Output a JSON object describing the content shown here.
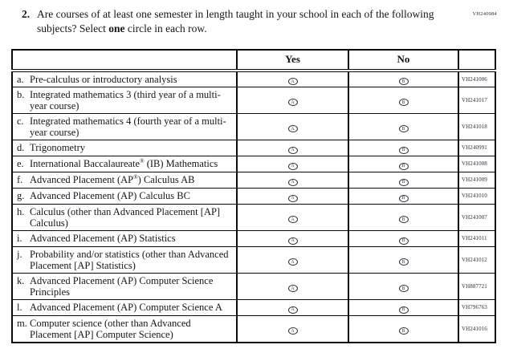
{
  "form_code": "VH240984",
  "question": {
    "number": "2.",
    "text_prefix": "Are courses of at least one semester in length taught in your school in each of the following subjects? Select ",
    "text_bold": "one",
    "text_suffix": " circle in each row."
  },
  "table": {
    "header": {
      "subject": "",
      "yes": "Yes",
      "no": "No",
      "code": ""
    },
    "yes_letter": "A",
    "no_letter": "B",
    "rows": [
      {
        "letter": "a.",
        "subject": "Pre-calculus or introductory analysis",
        "code": "VH241006"
      },
      {
        "letter": "b.",
        "subject": "Integrated mathematics 3 (third year of a multi-year course)",
        "code": "VH241017"
      },
      {
        "letter": "c.",
        "subject": "Integrated mathematics 4 (fourth year of a multi-year course)",
        "code": "VH241018"
      },
      {
        "letter": "d.",
        "subject": "Trigonometry",
        "code": "VH240991"
      },
      {
        "letter": "e.",
        "subject": "International Baccalaureate® (IB) Mathematics",
        "code": "VH241008"
      },
      {
        "letter": "f.",
        "subject": "Advanced Placement (AP®) Calculus AB",
        "code": "VH241009"
      },
      {
        "letter": "g.",
        "subject": "Advanced Placement (AP) Calculus BC",
        "code": "VH241010"
      },
      {
        "letter": "h.",
        "subject": "Calculus (other than Advanced Placement [AP] Calculus)",
        "code": "VH241007"
      },
      {
        "letter": "i.",
        "subject": "Advanced Placement (AP) Statistics",
        "code": "VH241011"
      },
      {
        "letter": "j.",
        "subject": "Probability and/or statistics (other than Advanced Placement [AP] Statistics)",
        "code": "VH241012"
      },
      {
        "letter": "k.",
        "subject": "Advanced Placement (AP) Computer Science Principles",
        "code": "VH887721"
      },
      {
        "letter": "l.",
        "subject": "Advanced Placement (AP) Computer Science A",
        "code": "VH796763"
      },
      {
        "letter": "m.",
        "subject": "Computer science (other than Advanced Placement [AP] Computer Science)",
        "code": "VH241016"
      }
    ]
  },
  "colors": {
    "ink": "#15151c",
    "border": "#0a0a0f",
    "background": "#ffffff"
  }
}
